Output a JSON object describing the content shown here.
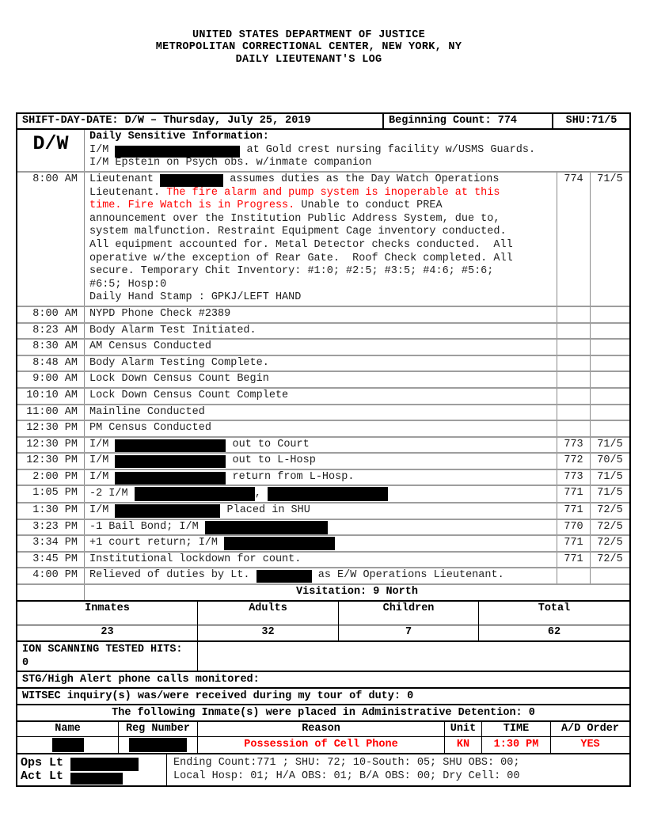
{
  "colors": {
    "accent_red": "#ff0000",
    "redaction": "#000000"
  },
  "page_header": {
    "lines": [
      "UNITED STATES DEPARTMENT OF JUSTICE",
      "METROPOLITAN CORRECTIONAL CENTER, NEW YORK, NY",
      "DAILY LIEUTENANT'S LOG"
    ]
  },
  "log": {
    "header": {
      "shift": "SHIFT-DAY-DATE: D/W – Thursday, July 25, 2019",
      "beginning_count": "Beginning Count: 774",
      "shu": "SHU:71/5"
    },
    "watch_code": "D/W",
    "sensitive_lines": [
      [
        {
          "t": "Daily Sensitive Information:",
          "b": true
        }
      ],
      [
        {
          "t": "I/M "
        },
        {
          "redact": 158,
          "h": 15
        },
        {
          "t": " at Gold crest nursing facility w/USMS Guards."
        }
      ],
      [
        {
          "t": "I/M Epstein on Psych obs. w/inmate companion"
        }
      ]
    ],
    "rows": [
      {
        "time": "8:00 AM",
        "count": "774",
        "shu": "71/5",
        "lines": [
          [
            {
              "t": "Lieutenant "
            },
            {
              "redact": 80,
              "h": 16
            },
            {
              "t": " assumes duties as the Day Watch Operations"
            }
          ],
          [
            {
              "t": "Lieutenant. "
            },
            {
              "t": "The fire alarm and pump system is inoperable at this",
              "red": true
            }
          ],
          [
            {
              "t": "time. Fire Watch is in Progress.",
              "red": true
            },
            {
              "t": " Unable to conduct PREA"
            }
          ],
          [
            {
              "t": "announcement over the Institution Public Address System, due to,"
            }
          ],
          [
            {
              "t": "system malfunction. Restraint Equipment Cage inventory conducted."
            }
          ],
          [
            {
              "t": "All equipment accounted for. Metal Detector checks conducted.  All"
            }
          ],
          [
            {
              "t": "operative w/the exception of Rear Gate.  Roof Check completed. All"
            }
          ],
          [
            {
              "t": "secure. Temporary Chit Inventory: #1:0; #2:5; #3:5; #4:6; #5:6;"
            }
          ],
          [
            {
              "t": "#6:5; Hosp:0"
            }
          ],
          [
            {
              "t": "Daily Hand Stamp : GPKJ/LEFT HAND"
            }
          ]
        ]
      },
      {
        "time": "8:00 AM",
        "count": "",
        "shu": "",
        "lines": [
          [
            {
              "t": "NYPD Phone Check #2389"
            }
          ]
        ]
      },
      {
        "time": "8:23 AM",
        "count": "",
        "shu": "",
        "lines": [
          [
            {
              "t": "Body Alarm Test Initiated."
            }
          ]
        ]
      },
      {
        "time": "8:30 AM",
        "count": "",
        "shu": "",
        "lines": [
          [
            {
              "t": "AM Census Conducted"
            }
          ]
        ]
      },
      {
        "time": "8:48 AM",
        "count": "",
        "shu": "",
        "lines": [
          [
            {
              "t": "Body Alarm Testing Complete."
            }
          ]
        ]
      },
      {
        "time": "9:00 AM",
        "count": "",
        "shu": "",
        "lines": [
          [
            {
              "t": "Lock Down Census Count Begin"
            }
          ]
        ]
      },
      {
        "time": "10:10 AM",
        "count": "",
        "shu": "",
        "lines": [
          [
            {
              "t": "Lock Down Census Count Complete"
            }
          ]
        ]
      },
      {
        "time": "11:00 AM",
        "count": "",
        "shu": "",
        "lines": [
          [
            {
              "t": "Mainline Conducted"
            }
          ]
        ]
      },
      {
        "time": "12:30 PM",
        "count": "",
        "shu": "",
        "lines": [
          [
            {
              "t": "PM Census Conducted"
            }
          ]
        ]
      },
      {
        "time": "12:30 PM",
        "count": "773",
        "shu": "71/5",
        "lines": [
          [
            {
              "t": "I/M "
            },
            {
              "redact": 140,
              "h": 16
            },
            {
              "t": " out to Court"
            }
          ]
        ]
      },
      {
        "time": "12:30 PM",
        "count": "772",
        "shu": "70/5",
        "lines": [
          [
            {
              "t": "I/M "
            },
            {
              "redact": 140,
              "h": 16
            },
            {
              "t": " out to L-Hosp"
            }
          ]
        ]
      },
      {
        "time": "2:00 PM",
        "count": "773",
        "shu": "71/5",
        "lines": [
          [
            {
              "t": "I/M "
            },
            {
              "redact": 140,
              "h": 16
            },
            {
              "t": " return from L-Hosp."
            }
          ]
        ]
      },
      {
        "time": "1:05 PM",
        "count": "771",
        "shu": "71/5",
        "lines": [
          [
            {
              "t": "-2 I/M "
            },
            {
              "redact": 152,
              "h": 18
            },
            {
              "t": ", "
            },
            {
              "redact": 152,
              "h": 18
            }
          ]
        ]
      },
      {
        "time": "1:30 PM",
        "count": "771",
        "shu": "72/5",
        "lines": [
          [
            {
              "t": "I/M "
            },
            {
              "redact": 133,
              "h": 17
            },
            {
              "t": " Placed in SHU"
            }
          ]
        ]
      },
      {
        "time": "3:23 PM",
        "count": "770",
        "shu": "72/5",
        "lines": [
          [
            {
              "t": "-1 Bail Bond; I/M "
            },
            {
              "redact": 155,
              "h": 17
            }
          ]
        ]
      },
      {
        "time": "3:34 PM",
        "count": "771",
        "shu": "72/5",
        "lines": [
          [
            {
              "t": "+1 court return; I/M "
            },
            {
              "redact": 140,
              "h": 17
            }
          ]
        ]
      },
      {
        "time": "3:45 PM",
        "count": "771",
        "shu": "72/5",
        "lines": [
          [
            {
              "t": "Institutional lockdown for count."
            }
          ]
        ]
      },
      {
        "time": "4:00 PM",
        "count": "",
        "shu": "",
        "lines": [
          [
            {
              "t": "Relieved of duties by Lt. "
            },
            {
              "redact": 70,
              "h": 16
            },
            {
              "t": " as E/W Operations Lieutenant."
            }
          ]
        ]
      },
      {
        "time": "",
        "span": true,
        "lines": [
          [
            {
              "t": "Visitation: 9 North",
              "b": true
            }
          ]
        ]
      }
    ]
  },
  "visitation": {
    "headers": [
      "Inmates",
      "Adults",
      "Children",
      "Total"
    ],
    "values": [
      "23",
      "32",
      "7",
      "62"
    ]
  },
  "sections": {
    "ion": "ION SCANNING TESTED HITS: 0",
    "stg": "STG/High Alert phone calls monitored:",
    "witsec": "WITSEC inquiry(s) was/were received during my tour of duty: 0",
    "admin_title": "The following Inmate(s) were placed in Administrative Detention: 0"
  },
  "ad_table": {
    "headers": [
      "Name",
      "Reg Number",
      "Reason",
      "Unit",
      "TIME",
      "A/D Order"
    ],
    "row": {
      "name_lines": [
        [
          {
            "redact": 40,
            "h": 18
          }
        ]
      ],
      "reg_lines": [
        [
          {
            "redact": 73,
            "h": 18
          }
        ]
      ],
      "reason": "Possession of Cell Phone",
      "unit": "KN",
      "time": "1:30 PM",
      "order": "YES"
    }
  },
  "footer": {
    "left_lines": [
      [
        {
          "t": "Ops Lt ",
          "b": true
        },
        {
          "redact": 86,
          "h": 17
        }
      ],
      [
        {
          "t": "Act Lt ",
          "b": true
        },
        {
          "redact": 66,
          "h": 15
        }
      ]
    ],
    "summary_lines": [
      "Ending Count:771 ; SHU: 72; 10-South: 05; SHU OBS: 00;",
      "Local Hosp: 01; H/A OBS: 01; B/A OBS: 00; Dry Cell: 00"
    ]
  }
}
